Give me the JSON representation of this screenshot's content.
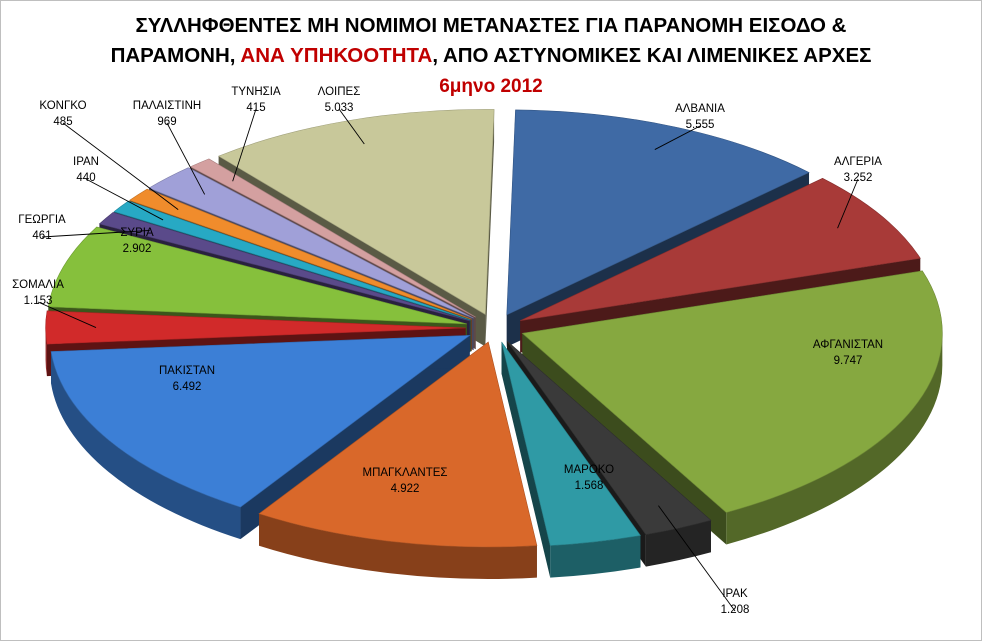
{
  "title": {
    "line1": "ΣΥΛΛΗΦΘΕΝΤΕΣ ΜΗ ΝΟΜΙΜΟΙ ΜΕΤΑΝΑΣΤΕΣ ΓΙΑ ΠΑΡΑΝΟΜΗ ΕΙΣΟΔΟ &",
    "line2_pre": "ΠΑΡΑΜΟΝΗ, ",
    "line2_red": "ΑΝΑ ΥΠΗΚΟΟΤΗΤΑ",
    "line2_post": ", ΑΠΟ ΑΣΤΥΝΟΜΙΚΕΣ ΚΑΙ ΛΙΜΕΝΙΚΕΣ ΑΡΧΕΣ",
    "subtitle": "6μηνο 2012"
  },
  "chart_data": {
    "type": "pie",
    "style": "3d-exploded",
    "legend": "none",
    "slices": [
      {
        "label": "ΑΛΒΑΝΙΑ",
        "value": 5555,
        "value_text": "5.555",
        "color": "#3f6aa5"
      },
      {
        "label": "ΑΛΓΕΡΙΑ",
        "value": 3252,
        "value_text": "3.252",
        "color": "#a83a38"
      },
      {
        "label": "ΑΦΓΑΝΙΣΤΑΝ",
        "value": 9747,
        "value_text": "9.747",
        "color": "#86a840"
      },
      {
        "label": "ΙΡΑΚ",
        "value": 1208,
        "value_text": "1.208",
        "color": "#3a3a3a"
      },
      {
        "label": "ΜΑΡΟΚΟ",
        "value": 1568,
        "value_text": "1.568",
        "color": "#2f9aa5"
      },
      {
        "label": "ΜΠΑΓΚΛΑΝΤΕΣ",
        "value": 4922,
        "value_text": "4.922",
        "color": "#d9682a"
      },
      {
        "label": "ΠΑΚΙΣΤΑΝ",
        "value": 6492,
        "value_text": "6.492",
        "color": "#3c7fd6"
      },
      {
        "label": "ΣΟΜΑΛΙΑ",
        "value": 1153,
        "value_text": "1.153",
        "color": "#d12a2a"
      },
      {
        "label": "ΣΥΡΙΑ",
        "value": 2902,
        "value_text": "2.902",
        "color": "#86c03c"
      },
      {
        "label": "ΓΕΩΡΓΙΑ",
        "value": 461,
        "value_text": "461",
        "color": "#5a4a8a"
      },
      {
        "label": "ΙΡΑΝ",
        "value": 440,
        "value_text": "440",
        "color": "#27a9c4"
      },
      {
        "label": "ΚΟΝΓΚΟ",
        "value": 485,
        "value_text": "485",
        "color": "#f08c2c"
      },
      {
        "label": "ΠΑΛΑΙΣΤΙΝΗ",
        "value": 969,
        "value_text": "969",
        "color": "#a0a0d8"
      },
      {
        "label": "ΤΥΝΗΣΙΑ",
        "value": 415,
        "value_text": "415",
        "color": "#d4a0a0"
      },
      {
        "label": "ΛΟΙΠΕΣ",
        "value": 5033,
        "value_text": "5.033",
        "color": "#c8c89a"
      }
    ]
  }
}
